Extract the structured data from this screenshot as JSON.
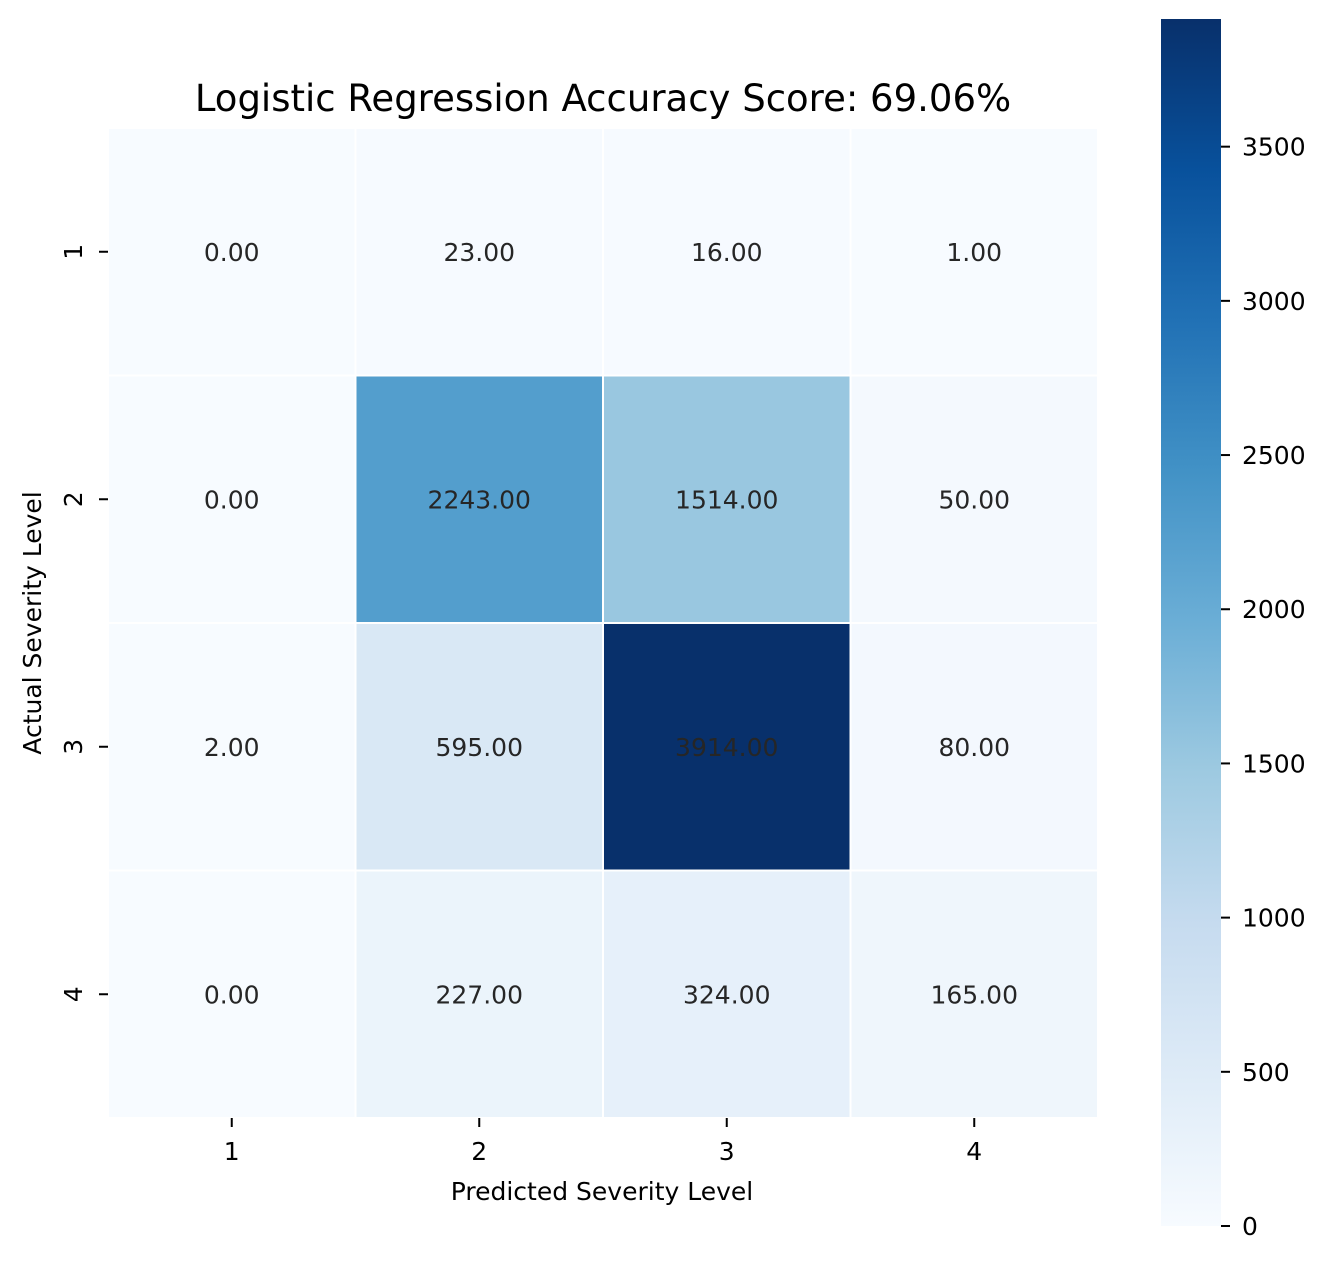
{
  "chart_data": {
    "type": "heatmap",
    "title": "Logistic Regression Accuracy Score: 69.06%",
    "xlabel": "Predicted Severity Level",
    "ylabel": "Actual Severity Level",
    "x_categories": [
      "1",
      "2",
      "3",
      "4"
    ],
    "y_categories": [
      "1",
      "2",
      "3",
      "4"
    ],
    "values": [
      [
        0,
        23,
        16,
        1
      ],
      [
        0,
        2243,
        1514,
        50
      ],
      [
        2,
        595,
        3914,
        80
      ],
      [
        0,
        227,
        324,
        165
      ]
    ],
    "cell_labels": [
      [
        "0.00",
        "23.00",
        "16.00",
        "1.00"
      ],
      [
        "0.00",
        "2243.00",
        "1514.00",
        "50.00"
      ],
      [
        "2.00",
        "595.00",
        "3914.00",
        "80.00"
      ],
      [
        "0.00",
        "227.00",
        "324.00",
        "165.00"
      ]
    ],
    "colormap": "Blues",
    "colorbar": {
      "range": [
        0,
        3914
      ],
      "ticks": [
        0,
        500,
        1000,
        1500,
        2000,
        2500,
        3000,
        3500
      ],
      "tick_labels": [
        "0",
        "500",
        "1000",
        "1500",
        "2000",
        "2500",
        "3000",
        "3500"
      ]
    },
    "grid": false
  }
}
